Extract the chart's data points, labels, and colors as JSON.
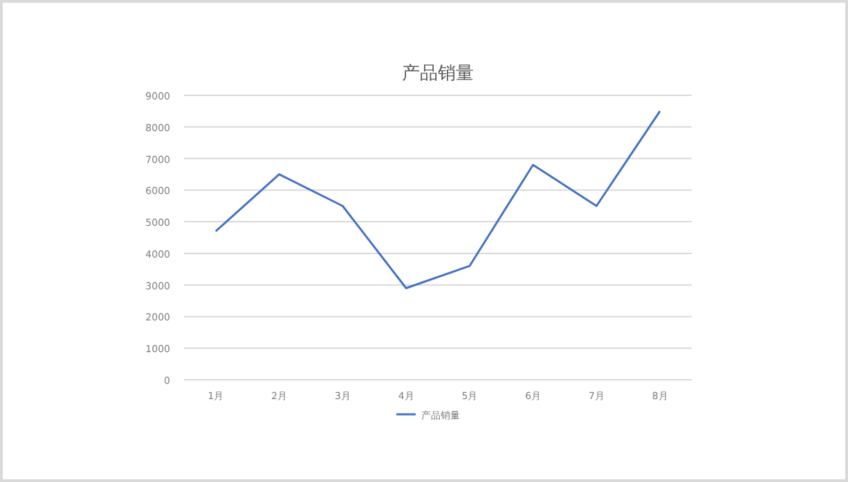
{
  "chart_data": {
    "type": "line",
    "title": "产品销量",
    "categories": [
      "1月",
      "2月",
      "3月",
      "4月",
      "5月",
      "6月",
      "7月",
      "8月"
    ],
    "series": [
      {
        "name": "产品销量",
        "color": "#4472c4",
        "values": [
          4700,
          6500,
          5500,
          2900,
          3600,
          6800,
          5500,
          8500
        ]
      }
    ],
    "ylim": [
      0,
      9000
    ],
    "yticks": [
      0,
      1000,
      2000,
      3000,
      4000,
      5000,
      6000,
      7000,
      8000,
      9000
    ],
    "grid": "y",
    "legend": "bottom",
    "marker": "none",
    "line_style": "solid"
  }
}
